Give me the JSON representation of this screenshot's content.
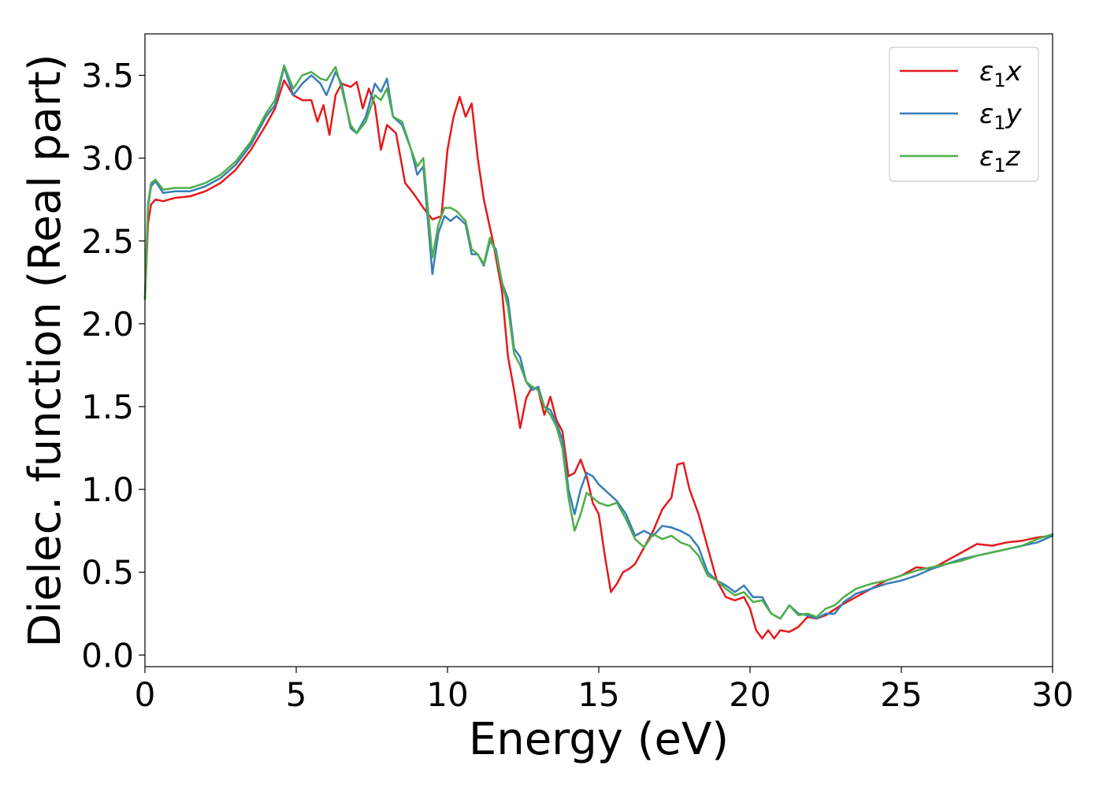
{
  "chart_data": {
    "type": "line",
    "xlabel": "Energy (eV)",
    "ylabel": "Dielec. function (Real part)",
    "xlim": [
      0,
      30
    ],
    "ylim": [
      -0.07,
      3.75
    ],
    "xticks": [
      "0",
      "5",
      "10",
      "15",
      "20",
      "25",
      "30"
    ],
    "yticks": [
      "0.0",
      "0.5",
      "1.0",
      "1.5",
      "2.0",
      "2.5",
      "3.0",
      "3.5"
    ],
    "grid": false,
    "legend_position": "top-right",
    "series": [
      {
        "name_main": "ε",
        "name_sub": "1",
        "name_suffix": "x",
        "color": "#e41a1c",
        "points": [
          [
            0,
            2.15
          ],
          [
            0.1,
            2.6
          ],
          [
            0.2,
            2.72
          ],
          [
            0.35,
            2.75
          ],
          [
            0.6,
            2.74
          ],
          [
            1,
            2.76
          ],
          [
            1.5,
            2.77
          ],
          [
            2,
            2.8
          ],
          [
            2.5,
            2.85
          ],
          [
            3,
            2.93
          ],
          [
            3.5,
            3.05
          ],
          [
            4,
            3.2
          ],
          [
            4.3,
            3.3
          ],
          [
            4.6,
            3.47
          ],
          [
            4.9,
            3.38
          ],
          [
            5.2,
            3.35
          ],
          [
            5.5,
            3.35
          ],
          [
            5.7,
            3.22
          ],
          [
            5.9,
            3.32
          ],
          [
            6.1,
            3.14
          ],
          [
            6.3,
            3.38
          ],
          [
            6.5,
            3.45
          ],
          [
            6.8,
            3.43
          ],
          [
            7,
            3.46
          ],
          [
            7.2,
            3.3
          ],
          [
            7.4,
            3.42
          ],
          [
            7.6,
            3.32
          ],
          [
            7.8,
            3.05
          ],
          [
            8,
            3.2
          ],
          [
            8.3,
            3.15
          ],
          [
            8.6,
            2.85
          ],
          [
            8.9,
            2.78
          ],
          [
            9.2,
            2.7
          ],
          [
            9.5,
            2.63
          ],
          [
            9.8,
            2.65
          ],
          [
            10,
            3.05
          ],
          [
            10.2,
            3.25
          ],
          [
            10.4,
            3.37
          ],
          [
            10.6,
            3.25
          ],
          [
            10.8,
            3.33
          ],
          [
            11,
            3.0
          ],
          [
            11.2,
            2.75
          ],
          [
            11.5,
            2.5
          ],
          [
            11.8,
            2.2
          ],
          [
            12,
            1.8
          ],
          [
            12.2,
            1.6
          ],
          [
            12.4,
            1.37
          ],
          [
            12.6,
            1.55
          ],
          [
            12.8,
            1.62
          ],
          [
            13,
            1.6
          ],
          [
            13.2,
            1.45
          ],
          [
            13.4,
            1.56
          ],
          [
            13.6,
            1.42
          ],
          [
            13.8,
            1.35
          ],
          [
            14,
            1.08
          ],
          [
            14.2,
            1.1
          ],
          [
            14.4,
            1.18
          ],
          [
            14.6,
            1.08
          ],
          [
            14.8,
            0.92
          ],
          [
            15,
            0.85
          ],
          [
            15.2,
            0.6
          ],
          [
            15.4,
            0.38
          ],
          [
            15.6,
            0.43
          ],
          [
            15.8,
            0.5
          ],
          [
            16,
            0.52
          ],
          [
            16.2,
            0.55
          ],
          [
            16.5,
            0.65
          ],
          [
            16.8,
            0.75
          ],
          [
            17.1,
            0.88
          ],
          [
            17.4,
            0.95
          ],
          [
            17.6,
            1.15
          ],
          [
            17.8,
            1.16
          ],
          [
            18,
            1.0
          ],
          [
            18.3,
            0.85
          ],
          [
            18.6,
            0.65
          ],
          [
            18.9,
            0.45
          ],
          [
            19.2,
            0.35
          ],
          [
            19.5,
            0.33
          ],
          [
            19.8,
            0.35
          ],
          [
            20,
            0.28
          ],
          [
            20.2,
            0.15
          ],
          [
            20.4,
            0.1
          ],
          [
            20.6,
            0.15
          ],
          [
            20.8,
            0.1
          ],
          [
            21,
            0.15
          ],
          [
            21.3,
            0.14
          ],
          [
            21.6,
            0.17
          ],
          [
            21.9,
            0.23
          ],
          [
            22.2,
            0.22
          ],
          [
            22.5,
            0.24
          ],
          [
            23,
            0.3
          ],
          [
            23.5,
            0.35
          ],
          [
            24,
            0.4
          ],
          [
            24.5,
            0.45
          ],
          [
            25,
            0.48
          ],
          [
            25.5,
            0.53
          ],
          [
            26,
            0.52
          ],
          [
            26.5,
            0.57
          ],
          [
            27,
            0.62
          ],
          [
            27.5,
            0.67
          ],
          [
            28,
            0.66
          ],
          [
            28.5,
            0.68
          ],
          [
            29,
            0.69
          ],
          [
            29.5,
            0.71
          ],
          [
            30,
            0.72
          ]
        ]
      },
      {
        "name_main": "ε",
        "name_sub": "1",
        "name_suffix": "y",
        "color": "#377eb8",
        "points": [
          [
            0,
            2.15
          ],
          [
            0.1,
            2.7
          ],
          [
            0.2,
            2.83
          ],
          [
            0.35,
            2.86
          ],
          [
            0.6,
            2.79
          ],
          [
            1,
            2.8
          ],
          [
            1.5,
            2.8
          ],
          [
            2,
            2.83
          ],
          [
            2.5,
            2.88
          ],
          [
            3,
            2.96
          ],
          [
            3.5,
            3.08
          ],
          [
            4,
            3.25
          ],
          [
            4.3,
            3.32
          ],
          [
            4.6,
            3.55
          ],
          [
            4.9,
            3.38
          ],
          [
            5.2,
            3.45
          ],
          [
            5.5,
            3.5
          ],
          [
            5.8,
            3.45
          ],
          [
            6,
            3.38
          ],
          [
            6.3,
            3.52
          ],
          [
            6.5,
            3.45
          ],
          [
            6.8,
            3.18
          ],
          [
            7,
            3.15
          ],
          [
            7.3,
            3.25
          ],
          [
            7.6,
            3.45
          ],
          [
            7.8,
            3.4
          ],
          [
            8,
            3.48
          ],
          [
            8.2,
            3.25
          ],
          [
            8.5,
            3.2
          ],
          [
            8.8,
            3.05
          ],
          [
            9,
            2.9
          ],
          [
            9.2,
            2.95
          ],
          [
            9.5,
            2.3
          ],
          [
            9.7,
            2.55
          ],
          [
            9.9,
            2.65
          ],
          [
            10.1,
            2.62
          ],
          [
            10.3,
            2.65
          ],
          [
            10.6,
            2.6
          ],
          [
            10.8,
            2.42
          ],
          [
            11,
            2.42
          ],
          [
            11.2,
            2.35
          ],
          [
            11.4,
            2.5
          ],
          [
            11.6,
            2.45
          ],
          [
            11.8,
            2.25
          ],
          [
            12,
            2.15
          ],
          [
            12.2,
            1.85
          ],
          [
            12.4,
            1.8
          ],
          [
            12.6,
            1.65
          ],
          [
            12.8,
            1.6
          ],
          [
            13,
            1.62
          ],
          [
            13.2,
            1.5
          ],
          [
            13.4,
            1.48
          ],
          [
            13.6,
            1.4
          ],
          [
            13.8,
            1.3
          ],
          [
            14,
            1.0
          ],
          [
            14.2,
            0.85
          ],
          [
            14.4,
            1.0
          ],
          [
            14.6,
            1.1
          ],
          [
            14.8,
            1.08
          ],
          [
            15,
            1.03
          ],
          [
            15.3,
            0.98
          ],
          [
            15.6,
            0.93
          ],
          [
            15.9,
            0.85
          ],
          [
            16.2,
            0.72
          ],
          [
            16.5,
            0.75
          ],
          [
            16.8,
            0.72
          ],
          [
            17.1,
            0.78
          ],
          [
            17.4,
            0.77
          ],
          [
            17.7,
            0.75
          ],
          [
            18,
            0.72
          ],
          [
            18.3,
            0.65
          ],
          [
            18.6,
            0.5
          ],
          [
            18.9,
            0.45
          ],
          [
            19.2,
            0.42
          ],
          [
            19.5,
            0.38
          ],
          [
            19.8,
            0.42
          ],
          [
            20.1,
            0.35
          ],
          [
            20.4,
            0.35
          ],
          [
            20.7,
            0.25
          ],
          [
            21,
            0.22
          ],
          [
            21.3,
            0.3
          ],
          [
            21.6,
            0.25
          ],
          [
            21.9,
            0.24
          ],
          [
            22.2,
            0.22
          ],
          [
            22.5,
            0.25
          ],
          [
            22.8,
            0.25
          ],
          [
            23.1,
            0.32
          ],
          [
            23.5,
            0.37
          ],
          [
            24,
            0.4
          ],
          [
            24.5,
            0.43
          ],
          [
            25,
            0.45
          ],
          [
            25.5,
            0.48
          ],
          [
            26,
            0.52
          ],
          [
            26.5,
            0.55
          ],
          [
            27,
            0.58
          ],
          [
            27.5,
            0.6
          ],
          [
            28,
            0.62
          ],
          [
            28.5,
            0.64
          ],
          [
            29,
            0.66
          ],
          [
            29.5,
            0.68
          ],
          [
            30,
            0.72
          ]
        ]
      },
      {
        "name_main": "ε",
        "name_sub": "1",
        "name_suffix": "z",
        "color": "#4daf4a",
        "points": [
          [
            0,
            2.15
          ],
          [
            0.1,
            2.72
          ],
          [
            0.2,
            2.85
          ],
          [
            0.35,
            2.87
          ],
          [
            0.6,
            2.81
          ],
          [
            1,
            2.82
          ],
          [
            1.5,
            2.82
          ],
          [
            2,
            2.85
          ],
          [
            2.5,
            2.9
          ],
          [
            3,
            2.98
          ],
          [
            3.5,
            3.1
          ],
          [
            4,
            3.27
          ],
          [
            4.3,
            3.35
          ],
          [
            4.6,
            3.56
          ],
          [
            4.9,
            3.42
          ],
          [
            5.2,
            3.5
          ],
          [
            5.5,
            3.52
          ],
          [
            5.8,
            3.48
          ],
          [
            6,
            3.47
          ],
          [
            6.3,
            3.55
          ],
          [
            6.5,
            3.42
          ],
          [
            6.8,
            3.2
          ],
          [
            7,
            3.15
          ],
          [
            7.3,
            3.22
          ],
          [
            7.6,
            3.38
          ],
          [
            7.8,
            3.35
          ],
          [
            8,
            3.42
          ],
          [
            8.2,
            3.25
          ],
          [
            8.5,
            3.22
          ],
          [
            8.8,
            3.05
          ],
          [
            9,
            2.95
          ],
          [
            9.2,
            3.0
          ],
          [
            9.5,
            2.4
          ],
          [
            9.7,
            2.6
          ],
          [
            9.9,
            2.7
          ],
          [
            10.1,
            2.7
          ],
          [
            10.3,
            2.68
          ],
          [
            10.6,
            2.62
          ],
          [
            10.8,
            2.45
          ],
          [
            11,
            2.42
          ],
          [
            11.2,
            2.36
          ],
          [
            11.4,
            2.52
          ],
          [
            11.6,
            2.43
          ],
          [
            11.8,
            2.25
          ],
          [
            12,
            2.1
          ],
          [
            12.2,
            1.82
          ],
          [
            12.4,
            1.75
          ],
          [
            12.6,
            1.65
          ],
          [
            12.8,
            1.62
          ],
          [
            13,
            1.6
          ],
          [
            13.2,
            1.5
          ],
          [
            13.4,
            1.45
          ],
          [
            13.6,
            1.38
          ],
          [
            13.8,
            1.25
          ],
          [
            14,
            0.95
          ],
          [
            14.2,
            0.75
          ],
          [
            14.4,
            0.85
          ],
          [
            14.6,
            0.98
          ],
          [
            14.8,
            0.95
          ],
          [
            15,
            0.92
          ],
          [
            15.3,
            0.9
          ],
          [
            15.6,
            0.92
          ],
          [
            15.9,
            0.82
          ],
          [
            16.2,
            0.7
          ],
          [
            16.5,
            0.65
          ],
          [
            16.8,
            0.73
          ],
          [
            17.1,
            0.7
          ],
          [
            17.4,
            0.72
          ],
          [
            17.7,
            0.68
          ],
          [
            18,
            0.66
          ],
          [
            18.3,
            0.6
          ],
          [
            18.6,
            0.48
          ],
          [
            18.9,
            0.45
          ],
          [
            19.2,
            0.4
          ],
          [
            19.5,
            0.36
          ],
          [
            19.8,
            0.38
          ],
          [
            20.1,
            0.32
          ],
          [
            20.4,
            0.33
          ],
          [
            20.7,
            0.25
          ],
          [
            21,
            0.22
          ],
          [
            21.3,
            0.3
          ],
          [
            21.6,
            0.24
          ],
          [
            21.9,
            0.25
          ],
          [
            22.2,
            0.23
          ],
          [
            22.5,
            0.28
          ],
          [
            22.8,
            0.3
          ],
          [
            23.1,
            0.35
          ],
          [
            23.5,
            0.4
          ],
          [
            24,
            0.43
          ],
          [
            24.5,
            0.45
          ],
          [
            25,
            0.48
          ],
          [
            25.5,
            0.51
          ],
          [
            26,
            0.53
          ],
          [
            26.5,
            0.55
          ],
          [
            27,
            0.57
          ],
          [
            27.5,
            0.6
          ],
          [
            28,
            0.62
          ],
          [
            28.5,
            0.64
          ],
          [
            29,
            0.66
          ],
          [
            29.5,
            0.7
          ],
          [
            30,
            0.73
          ]
        ]
      }
    ]
  }
}
